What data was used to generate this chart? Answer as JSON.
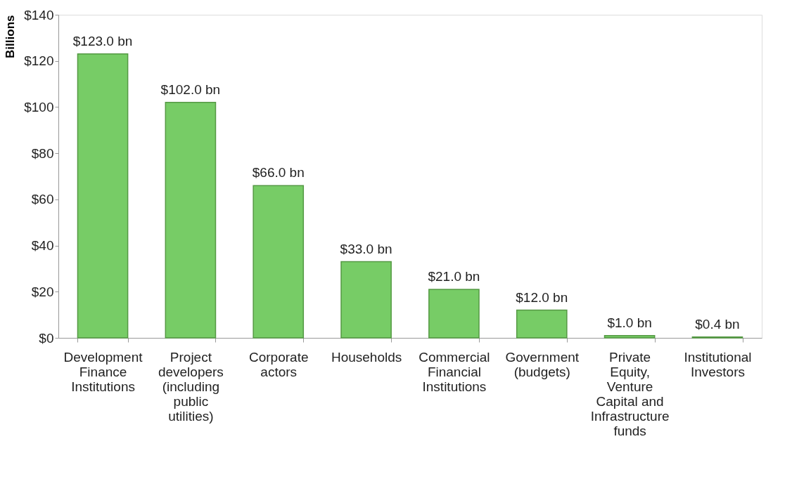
{
  "chart_data": {
    "type": "bar",
    "ylabel": "Billions",
    "categories": [
      "Development Finance Institutions",
      "Project developers (including public utilities)",
      "Corporate actors",
      "Households",
      "Commercial Financial Institutions",
      "Government (budgets)",
      "Private Equity, Venture Capital and Infrastructure funds",
      "Institutional Investors"
    ],
    "values": [
      123,
      102,
      66,
      33,
      21,
      12,
      1,
      0.4
    ],
    "value_labels": [
      "$123.0 bn",
      "$102.0 bn",
      "$66.0 bn",
      "$33.0 bn",
      "$21.0 bn",
      "$12.0 bn",
      "$1.0 bn",
      "$0.4 bn"
    ],
    "color": "#77cc66",
    "ylim": [
      0,
      140
    ],
    "yticks": [
      {
        "value": 0,
        "label": "$0"
      },
      {
        "value": 20,
        "label": "$20"
      },
      {
        "value": 40,
        "label": "$40"
      },
      {
        "value": 60,
        "label": "$60"
      },
      {
        "value": 80,
        "label": "$80"
      },
      {
        "value": 100,
        "label": "$100"
      },
      {
        "value": 120,
        "label": "$120"
      },
      {
        "value": 140,
        "label": "$140"
      }
    ],
    "grid": false
  }
}
